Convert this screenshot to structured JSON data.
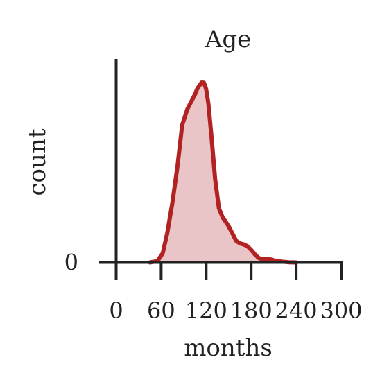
{
  "chart_data": {
    "type": "area",
    "title": "Age",
    "xlabel": "months",
    "ylabel": "count",
    "xlim": [
      0,
      300
    ],
    "ylim": [
      0,
      1
    ],
    "xticks": [
      0,
      60,
      120,
      180,
      240,
      300
    ],
    "xtick_labels": [
      "0",
      "60",
      "120",
      "180",
      "240",
      "300"
    ],
    "yticks": [
      0
    ],
    "ytick_labels": [
      "0"
    ],
    "grid": false,
    "series": [
      {
        "x": [
          45,
          55,
          62,
          68,
          75,
          82,
          88,
          95,
          100,
          105,
          108,
          111,
          114,
          117,
          120,
          123,
          127,
          132,
          137,
          142,
          147,
          150,
          155,
          160,
          165,
          170,
          175,
          180,
          185,
          190,
          195,
          200,
          205,
          210,
          215,
          220,
          225,
          230,
          240
        ],
        "y": [
          0,
          0.008,
          0.05,
          0.16,
          0.33,
          0.54,
          0.76,
          0.85,
          0.89,
          0.93,
          0.96,
          0.98,
          0.996,
          0.995,
          0.96,
          0.88,
          0.7,
          0.46,
          0.3,
          0.25,
          0.22,
          0.2,
          0.16,
          0.12,
          0.105,
          0.1,
          0.09,
          0.07,
          0.045,
          0.025,
          0.018,
          0.02,
          0.018,
          0.012,
          0.008,
          0.005,
          0.003,
          0.001,
          0
        ],
        "color": "#b22222",
        "fill": "#eac5c7"
      }
    ]
  }
}
